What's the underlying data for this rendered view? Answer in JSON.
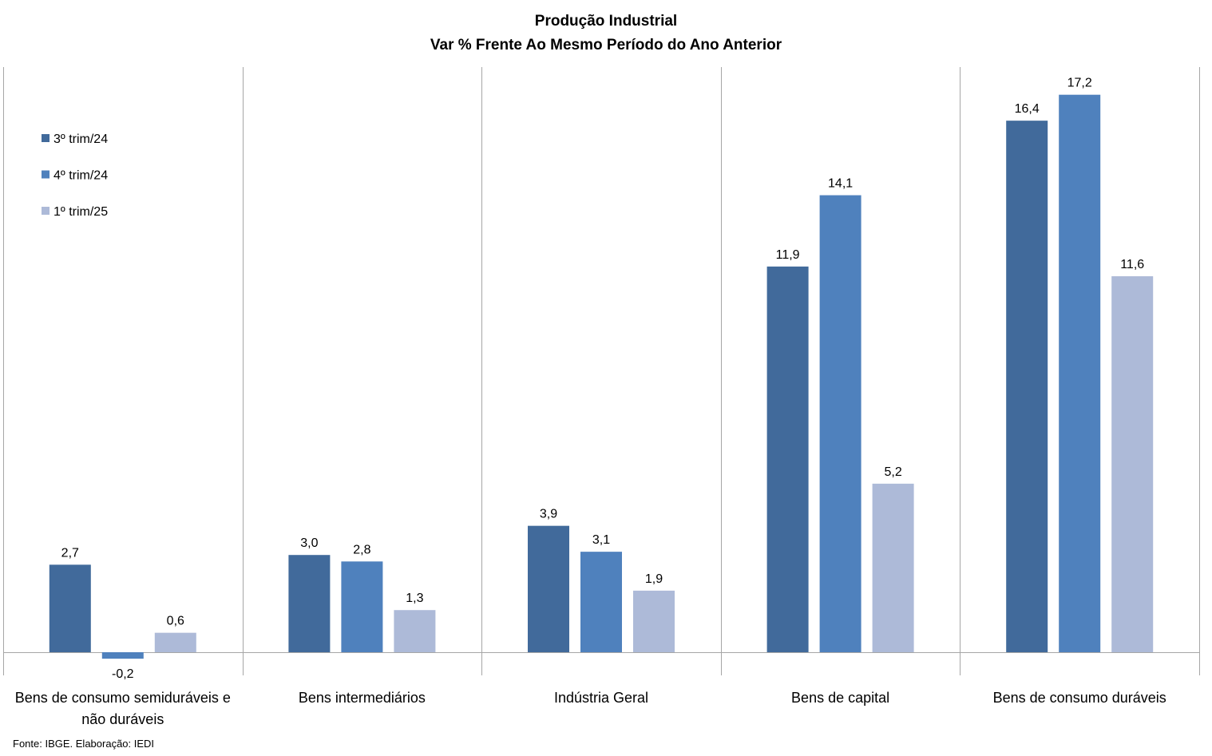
{
  "chart_data": {
    "type": "bar",
    "title": "Produção Industrial",
    "subtitle": "Var % Frente Ao Mesmo Período do Ano Anterior",
    "categories": [
      [
        "Bens de consumo semiduráveis e",
        "não duráveis"
      ],
      [
        "Bens intermediários"
      ],
      [
        "Indústria Geral"
      ],
      [
        "Bens de capital"
      ],
      [
        "Bens de consumo duráveis"
      ]
    ],
    "series": [
      {
        "name": "3º trim/24",
        "color": "#416A9B",
        "values": [
          2.7,
          3.0,
          3.9,
          11.9,
          16.4
        ],
        "labels": [
          "2,7",
          "3,0",
          "3,9",
          "11,9",
          "16,4"
        ]
      },
      {
        "name": "4º trim/24",
        "color": "#4F81BD",
        "values": [
          -0.2,
          2.8,
          3.1,
          14.1,
          17.2
        ],
        "labels": [
          "-0,2",
          "2,8",
          "3,1",
          "14,1",
          "17,2"
        ]
      },
      {
        "name": "1º trim/25",
        "color": "#ADBAD8",
        "values": [
          0.6,
          1.3,
          1.9,
          5.2,
          11.6
        ],
        "labels": [
          "0,6",
          "1,3",
          "1,9",
          "5,2",
          "11,6"
        ]
      }
    ],
    "ylim": [
      -0.7,
      18.0
    ],
    "legend_position": "top-left",
    "grid": false,
    "source": "Fonte: IBGE. Elaboração: IEDI"
  }
}
